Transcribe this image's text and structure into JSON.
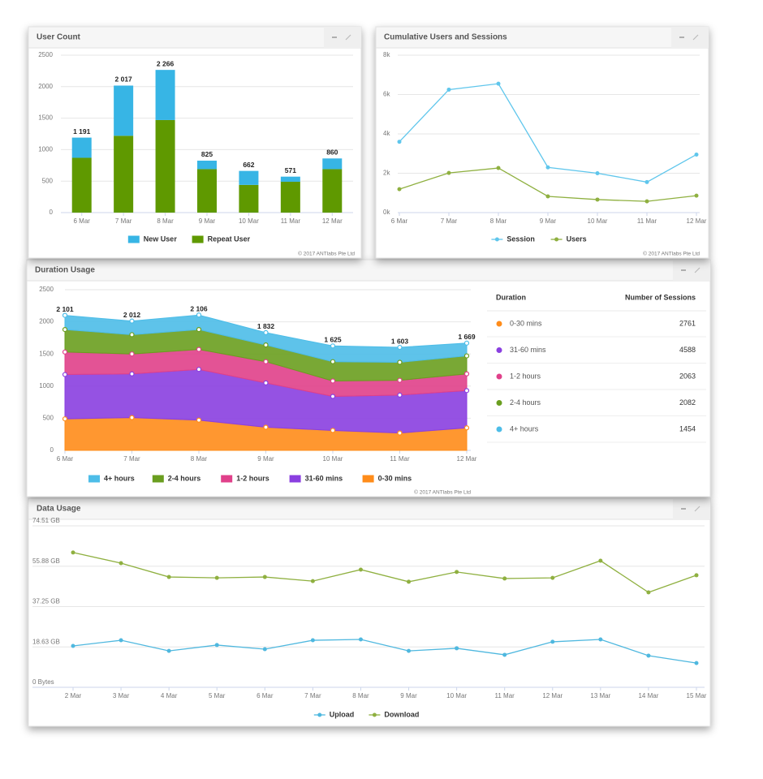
{
  "chart_data": [
    {
      "type": "bar",
      "title": "User Count",
      "categories": [
        "6 Mar",
        "7 Mar",
        "8 Mar",
        "9 Mar",
        "10 Mar",
        "11 Mar",
        "12 Mar"
      ],
      "series": [
        {
          "name": "New User",
          "color": "#37b5e5",
          "values": [
            321,
            797,
            796,
            135,
            222,
            81,
            170
          ]
        },
        {
          "name": "Repeat User",
          "color": "#5f9900",
          "values": [
            870,
            1220,
            1470,
            690,
            440,
            490,
            690
          ]
        }
      ],
      "totals": [
        1191,
        2017,
        2266,
        825,
        662,
        571,
        860
      ],
      "total_labels": [
        "1 191",
        "2 017",
        "2 266",
        "825",
        "662",
        "571",
        "860"
      ],
      "ylim": [
        0,
        2500
      ],
      "yticks": [
        0,
        500,
        1000,
        1500,
        2000,
        2500
      ],
      "grid": true,
      "credit": "© 2017 ANTlabs Pte Ltd"
    },
    {
      "type": "line",
      "title": "Cumulative Users and Sessions",
      "categories": [
        "6 Mar",
        "7 Mar",
        "8 Mar",
        "9 Mar",
        "10 Mar",
        "11 Mar",
        "12 Mar"
      ],
      "series": [
        {
          "name": "Session",
          "color": "#5fc6ec",
          "values": [
            3600,
            6250,
            6550,
            2300,
            2000,
            1550,
            2950
          ]
        },
        {
          "name": "Users",
          "color": "#8fb040",
          "values": [
            1191,
            2017,
            2266,
            825,
            662,
            571,
            860
          ]
        }
      ],
      "ylim": [
        0,
        8000
      ],
      "yticks": [
        {
          "value": 0,
          "label": "0k"
        },
        {
          "value": 2000,
          "label": "2k"
        },
        {
          "value": 4000,
          "label": "4k"
        },
        {
          "value": 6000,
          "label": "6k"
        },
        {
          "value": 8000,
          "label": "8k"
        }
      ],
      "grid": true,
      "credit": "© 2017 ANTlabs Pte Ltd"
    },
    {
      "type": "area",
      "title": "Duration Usage",
      "categories": [
        "6 Mar",
        "7 Mar",
        "8 Mar",
        "9 Mar",
        "10 Mar",
        "11 Mar",
        "12 Mar"
      ],
      "series": [
        {
          "name": "4+ hours",
          "color": "#4dbde8",
          "values": [
            221,
            212,
            226,
            192,
            245,
            233,
            199
          ]
        },
        {
          "name": "2-4 hours",
          "color": "#6a9e1f",
          "values": [
            350,
            300,
            310,
            260,
            300,
            280,
            280
          ]
        },
        {
          "name": "1-2 hours",
          "color": "#e0408a",
          "values": [
            350,
            310,
            310,
            330,
            240,
            230,
            260
          ]
        },
        {
          "name": "31-60 mins",
          "color": "#8a3fe0",
          "values": [
            690,
            680,
            790,
            690,
            530,
            590,
            580
          ]
        },
        {
          "name": "0-30 mins",
          "color": "#ff8c1a",
          "values": [
            490,
            510,
            470,
            360,
            310,
            270,
            350
          ]
        }
      ],
      "totals": [
        2101,
        2012,
        2106,
        1832,
        1625,
        1603,
        1669
      ],
      "total_labels": [
        "2 101",
        "2 012",
        "2 106",
        "1 832",
        "1 625",
        "1 603",
        "1 669"
      ],
      "ylim": [
        0,
        2500
      ],
      "yticks": [
        0,
        500,
        1000,
        1500,
        2000,
        2500
      ],
      "grid": true,
      "credit": "© 2017 ANTlabs Pte Ltd"
    },
    {
      "type": "line",
      "title": "Data Usage",
      "categories": [
        "2 Mar",
        "3 Mar",
        "4 Mar",
        "5 Mar",
        "6 Mar",
        "7 Mar",
        "8 Mar",
        "9 Mar",
        "10 Mar",
        "11 Mar",
        "12 Mar",
        "13 Mar",
        "14 Mar",
        "15 Mar"
      ],
      "series": [
        {
          "name": "Upload",
          "color": "#4fb8df",
          "values": [
            19.1,
            21.7,
            16.8,
            19.5,
            17.6,
            21.7,
            22.1,
            16.8,
            18.0,
            15.0,
            21.0,
            22.1,
            14.6,
            11.2
          ]
        },
        {
          "name": "Download",
          "color": "#8fb040",
          "values": [
            62.2,
            57.3,
            50.9,
            50.5,
            50.9,
            49.0,
            54.3,
            48.7,
            53.2,
            50.2,
            50.5,
            58.4,
            43.8,
            51.7
          ]
        }
      ],
      "ylim": [
        0,
        74.51
      ],
      "yticks": [
        {
          "value": 0,
          "label": "0 Bytes"
        },
        {
          "value": 18.63,
          "label": "18.63 GB"
        },
        {
          "value": 37.25,
          "label": "37.25 GB"
        },
        {
          "value": 55.88,
          "label": "55.88 GB"
        },
        {
          "value": 74.51,
          "label": "74.51 GB"
        }
      ],
      "grid": true
    }
  ],
  "table": {
    "columns": [
      "Duration",
      "Number of Sessions"
    ],
    "rows": [
      {
        "label": "0-30 mins",
        "value": 2761,
        "color": "#ff8c1a"
      },
      {
        "label": "31-60 mins",
        "value": 4588,
        "color": "#8a3fe0"
      },
      {
        "label": "1-2 hours",
        "value": 2063,
        "color": "#e0408a"
      },
      {
        "label": "2-4 hours",
        "value": 2082,
        "color": "#6a9e1f"
      },
      {
        "label": "4+ hours",
        "value": 1454,
        "color": "#4dbde8"
      }
    ]
  }
}
